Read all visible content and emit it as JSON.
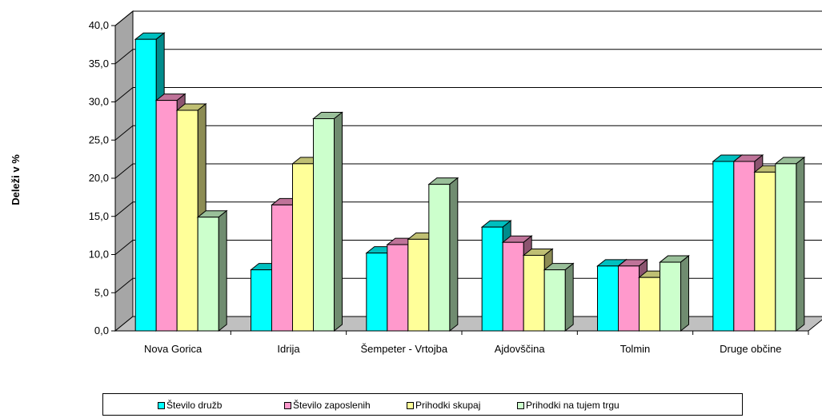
{
  "chart_data": {
    "type": "bar",
    "ylabel": "Deleži v %",
    "xlabel": "",
    "title": "",
    "ylim": [
      0,
      40
    ],
    "yticks": [
      "0,0",
      "5,0",
      "10,0",
      "15,0",
      "20,0",
      "25,0",
      "30,0",
      "35,0",
      "40,0"
    ],
    "grid": true,
    "legend_position": "bottom",
    "categories": [
      "Nova Gorica",
      "Idrija",
      "Šempeter - Vrtojba",
      "Ajdovščina",
      "Tolmin",
      "Druge občine"
    ],
    "series": [
      {
        "name": "Število družb",
        "color": "#00ffff",
        "values": [
          38.2,
          8.0,
          10.2,
          13.6,
          8.5,
          22.2
        ]
      },
      {
        "name": "Število zaposlenih",
        "color": "#ff99cc",
        "values": [
          30.2,
          16.5,
          11.3,
          11.6,
          8.5,
          22.2
        ]
      },
      {
        "name": "Prihodki skupaj",
        "color": "#ffff99",
        "values": [
          28.9,
          21.9,
          12.0,
          9.9,
          7.0,
          20.8
        ]
      },
      {
        "name": "Prihodki na tujem trgu",
        "color": "#ccffcc",
        "values": [
          14.9,
          27.8,
          19.2,
          8.0,
          9.0,
          21.9
        ]
      }
    ]
  }
}
